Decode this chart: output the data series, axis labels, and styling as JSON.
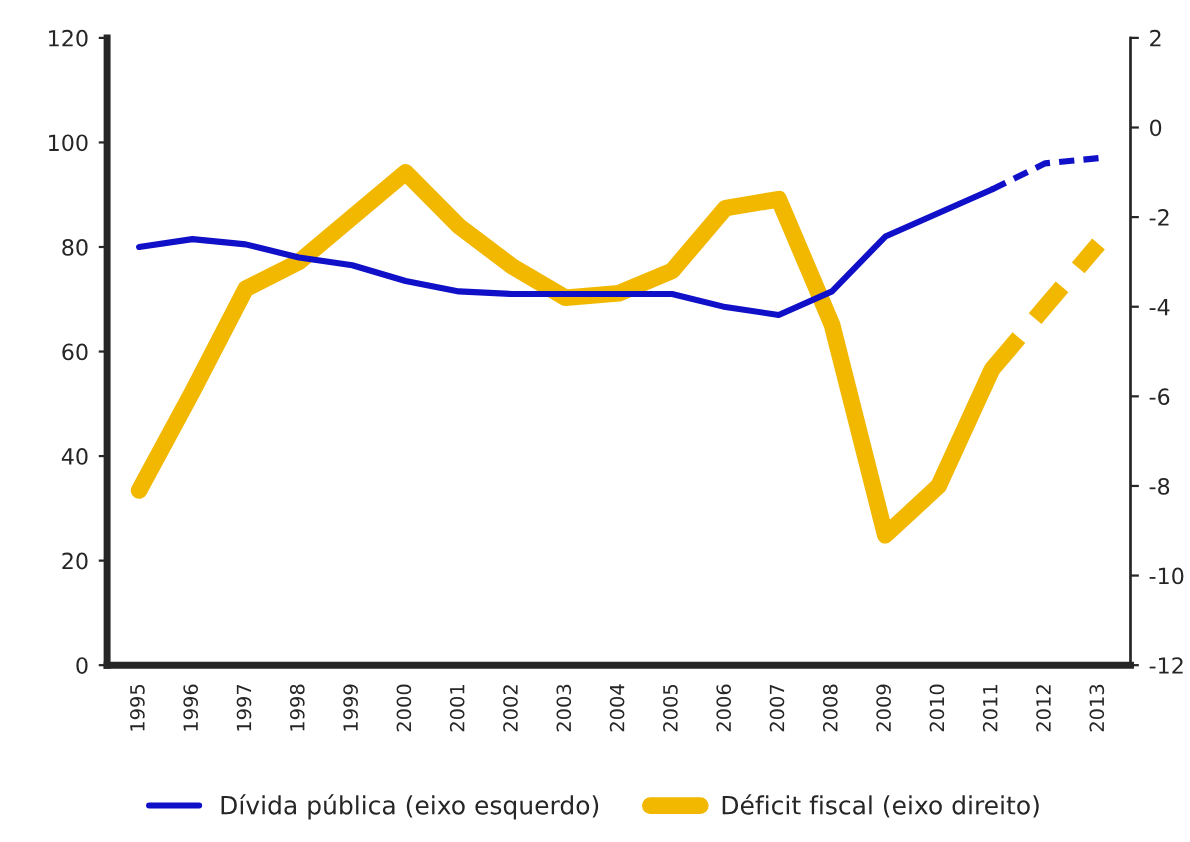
{
  "chart_data": {
    "type": "line",
    "categories": [
      "1995",
      "1996",
      "1997",
      "1998",
      "1999",
      "2000",
      "2001",
      "2002",
      "2003",
      "2004",
      "2005",
      "2006",
      "2007",
      "2008",
      "2009",
      "2010",
      "2011",
      "2012",
      "2013"
    ],
    "series": [
      {
        "name": "Dívida pública (eixo esquerdo)",
        "color": "#1010c8",
        "line_style": "solid",
        "values": [
          80,
          81.5,
          80.5,
          78,
          76.5,
          73.5,
          71.5,
          71,
          71,
          71,
          71,
          68.5,
          67,
          71.5,
          82,
          86.5,
          91,
          null,
          null
        ]
      },
      {
        "color": "#1010c8",
        "line_style": "dashed",
        "values": [
          null,
          null,
          null,
          null,
          null,
          null,
          null,
          null,
          null,
          null,
          null,
          null,
          null,
          null,
          null,
          null,
          91,
          96,
          97
        ]
      },
      {
        "name": "Déficit fiscal (eixo direito)",
        "color": "#f2b800",
        "line_style": "solid",
        "axis": "y2",
        "values": [
          -8.1,
          -5.9,
          -3.6,
          -3.0,
          -2.0,
          -1.0,
          -2.2,
          -3.1,
          -3.8,
          -3.7,
          -3.2,
          -1.8,
          -1.6,
          -4.4,
          -9.1,
          -8.0,
          -5.4,
          null,
          null
        ]
      },
      {
        "color": "#f2b800",
        "line_style": "dashed",
        "axis": "y2",
        "values": [
          null,
          null,
          null,
          null,
          null,
          null,
          null,
          null,
          null,
          null,
          null,
          null,
          null,
          null,
          null,
          null,
          -5.4,
          -4.0,
          -2.6
        ]
      }
    ],
    "ylim": [
      0,
      120
    ],
    "yticks": [
      0,
      20,
      40,
      60,
      80,
      100,
      120
    ],
    "y2lim": [
      -12,
      2
    ],
    "y2ticks": [
      -12,
      -10,
      -8,
      -6,
      -4,
      -2,
      0,
      2
    ],
    "grid": false,
    "legend": "bottom",
    "marker": "none"
  }
}
